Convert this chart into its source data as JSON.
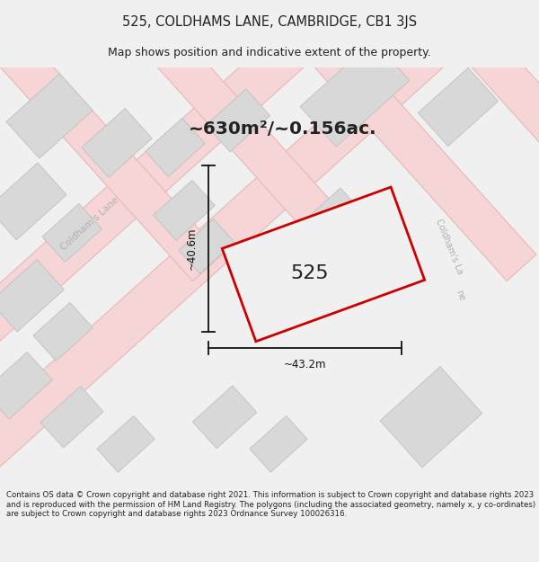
{
  "title": "525, COLDHAMS LANE, CAMBRIDGE, CB1 3JS",
  "subtitle": "Map shows position and indicative extent of the property.",
  "area_text": "~630m²/~0.156ac.",
  "property_number": "525",
  "dim_width": "~43.2m",
  "dim_height": "~40.6m",
  "footer": "Contains OS data © Crown copyright and database right 2021. This information is subject to Crown copyright and database rights 2023 and is reproduced with the permission of HM Land Registry. The polygons (including the associated geometry, namely x, y co-ordinates) are subject to Crown copyright and database rights 2023 Ordnance Survey 100026316.",
  "bg_color": "#f0f0f0",
  "map_bg": "#ffffff",
  "road_fill": "#f5d5d5",
  "road_edge": "#e8b8b8",
  "road_line": "#e8b8b8",
  "building_color": "#d8d8d8",
  "building_edge": "#c0c0c0",
  "property_fill": "#f0f0f0",
  "property_edge": "#cc0000",
  "text_dark": "#222222",
  "text_gray": "#b0b0b0",
  "dim_color": "#111111"
}
